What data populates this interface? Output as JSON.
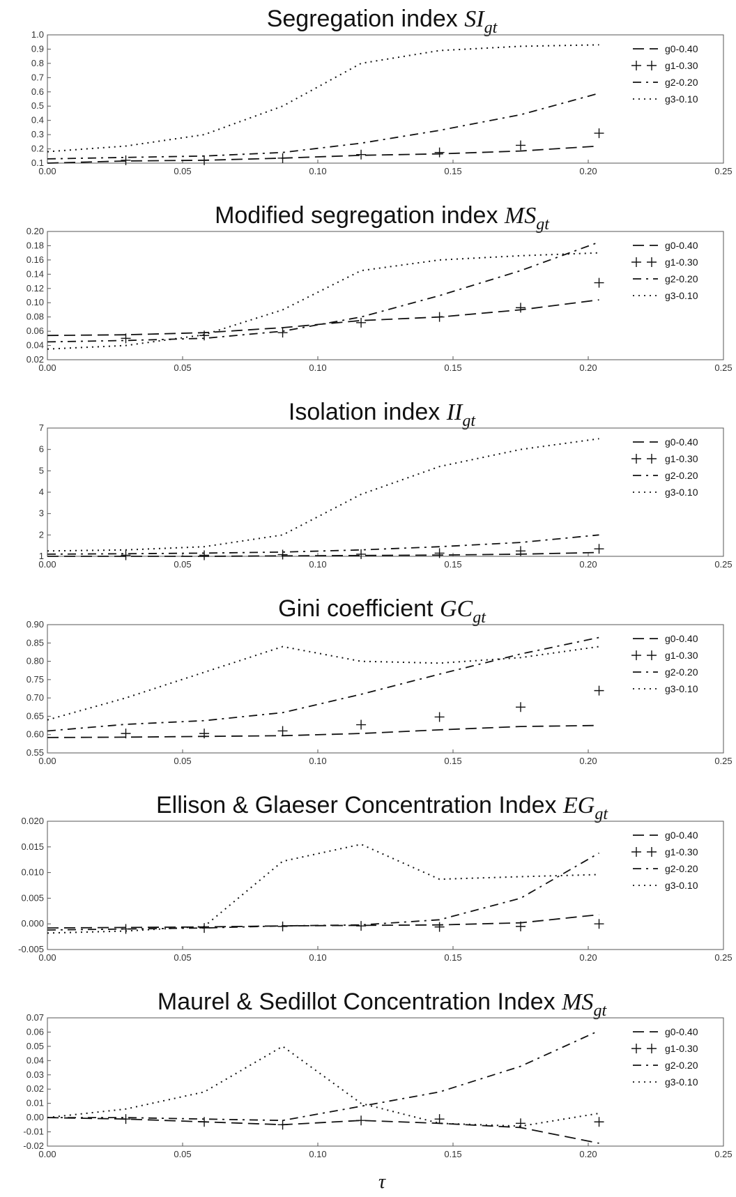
{
  "xlabel": "τ",
  "chart_data": [
    {
      "type": "line",
      "title": "Segregation index ",
      "title_math": "SI",
      "title_sub": "gt",
      "xlim": [
        0,
        0.25
      ],
      "ylim": [
        0.1,
        1.0
      ],
      "xticks": [
        "0.00",
        "0.05",
        "0.10",
        "0.15",
        "0.20",
        "0.25"
      ],
      "yticks": [
        "0.1",
        "0.2",
        "0.3",
        "0.4",
        "0.5",
        "0.6",
        "0.7",
        "0.8",
        "0.9",
        "1.0"
      ],
      "legend_position": "top-right",
      "series": [
        {
          "name": "g0-0.40",
          "style": "dashed",
          "x": [
            0,
            0.029,
            0.058,
            0.087,
            0.116,
            0.145,
            0.175,
            0.204
          ],
          "y": [
            0.1,
            0.115,
            0.12,
            0.135,
            0.155,
            0.165,
            0.185,
            0.22
          ]
        },
        {
          "name": "g1-0.30",
          "style": "markers",
          "x": [
            0.029,
            0.058,
            0.087,
            0.116,
            0.145,
            0.175,
            0.204
          ],
          "y": [
            0.12,
            0.12,
            0.135,
            0.16,
            0.175,
            0.225,
            0.31
          ]
        },
        {
          "name": "g2-0.20",
          "style": "dashdot",
          "x": [
            0,
            0.029,
            0.058,
            0.087,
            0.116,
            0.145,
            0.175,
            0.204
          ],
          "y": [
            0.13,
            0.14,
            0.15,
            0.175,
            0.24,
            0.33,
            0.44,
            0.59
          ]
        },
        {
          "name": "g3-0.10",
          "style": "dotted",
          "x": [
            0,
            0.029,
            0.058,
            0.087,
            0.116,
            0.145,
            0.175,
            0.204
          ],
          "y": [
            0.18,
            0.22,
            0.3,
            0.5,
            0.8,
            0.89,
            0.92,
            0.93
          ]
        }
      ]
    },
    {
      "type": "line",
      "title": "Modified segregation index ",
      "title_math": "MS",
      "title_sub": "gt",
      "xlim": [
        0,
        0.25
      ],
      "ylim": [
        0.02,
        0.2
      ],
      "xticks": [
        "0.00",
        "0.05",
        "0.10",
        "0.15",
        "0.20",
        "0.25"
      ],
      "yticks": [
        "0.02",
        "0.04",
        "0.06",
        "0.08",
        "0.10",
        "0.12",
        "0.14",
        "0.16",
        "0.18",
        "0.20"
      ],
      "legend_position": "top-right",
      "series": [
        {
          "name": "g0-0.40",
          "style": "dashed",
          "x": [
            0,
            0.029,
            0.058,
            0.087,
            0.116,
            0.145,
            0.175,
            0.204
          ],
          "y": [
            0.054,
            0.055,
            0.058,
            0.065,
            0.075,
            0.08,
            0.09,
            0.104
          ]
        },
        {
          "name": "g1-0.30",
          "style": "markers",
          "x": [
            0.029,
            0.058,
            0.087,
            0.116,
            0.145,
            0.175,
            0.204
          ],
          "y": [
            0.05,
            0.054,
            0.058,
            0.072,
            0.08,
            0.093,
            0.128
          ]
        },
        {
          "name": "g2-0.20",
          "style": "dashdot",
          "x": [
            0,
            0.029,
            0.058,
            0.087,
            0.116,
            0.145,
            0.175,
            0.204
          ],
          "y": [
            0.045,
            0.047,
            0.05,
            0.06,
            0.08,
            0.11,
            0.145,
            0.185
          ]
        },
        {
          "name": "g3-0.10",
          "style": "dotted",
          "x": [
            0,
            0.029,
            0.058,
            0.087,
            0.116,
            0.145,
            0.175,
            0.204
          ],
          "y": [
            0.035,
            0.04,
            0.055,
            0.09,
            0.145,
            0.16,
            0.166,
            0.17
          ]
        }
      ]
    },
    {
      "type": "line",
      "title": "Isolation index ",
      "title_math": "II",
      "title_sub": "gt",
      "xlim": [
        0,
        0.25
      ],
      "ylim": [
        1,
        7
      ],
      "xticks": [
        "0.00",
        "0.05",
        "0.10",
        "0.15",
        "0.20",
        "0.25"
      ],
      "yticks": [
        "1",
        "2",
        "3",
        "4",
        "5",
        "6",
        "7"
      ],
      "legend_position": "top-right",
      "series": [
        {
          "name": "g0-0.40",
          "style": "dashed",
          "x": [
            0,
            0.029,
            0.058,
            0.087,
            0.116,
            0.145,
            0.175,
            0.204
          ],
          "y": [
            1.0,
            1.0,
            1.0,
            1.02,
            1.04,
            1.06,
            1.1,
            1.18
          ]
        },
        {
          "name": "g1-0.30",
          "style": "markers",
          "x": [
            0.029,
            0.058,
            0.087,
            0.116,
            0.145,
            0.175,
            0.204
          ],
          "y": [
            1.05,
            1.05,
            1.08,
            1.1,
            1.15,
            1.25,
            1.35
          ]
        },
        {
          "name": "g2-0.20",
          "style": "dashdot",
          "x": [
            0,
            0.029,
            0.058,
            0.087,
            0.116,
            0.145,
            0.175,
            0.204
          ],
          "y": [
            1.1,
            1.12,
            1.15,
            1.2,
            1.3,
            1.45,
            1.65,
            2.0
          ]
        },
        {
          "name": "g3-0.10",
          "style": "dotted",
          "x": [
            0,
            0.029,
            0.058,
            0.087,
            0.116,
            0.145,
            0.175,
            0.204
          ],
          "y": [
            1.25,
            1.3,
            1.45,
            2.0,
            3.9,
            5.2,
            6.0,
            6.5
          ]
        }
      ]
    },
    {
      "type": "line",
      "title": "Gini coefficient ",
      "title_math": "GC",
      "title_sub": "gt",
      "xlim": [
        0,
        0.25
      ],
      "ylim": [
        0.55,
        0.9
      ],
      "xticks": [
        "0.00",
        "0.05",
        "0.10",
        "0.15",
        "0.20",
        "0.25"
      ],
      "yticks": [
        "0.55",
        "0.60",
        "0.65",
        "0.70",
        "0.75",
        "0.80",
        "0.85",
        "0.90"
      ],
      "legend_position": "top-right",
      "series": [
        {
          "name": "g0-0.40",
          "style": "dashed",
          "x": [
            0,
            0.029,
            0.058,
            0.087,
            0.116,
            0.145,
            0.175,
            0.204
          ],
          "y": [
            0.592,
            0.593,
            0.595,
            0.597,
            0.603,
            0.613,
            0.622,
            0.625
          ]
        },
        {
          "name": "g1-0.30",
          "style": "markers",
          "x": [
            0.029,
            0.058,
            0.087,
            0.116,
            0.145,
            0.175,
            0.204
          ],
          "y": [
            0.603,
            0.603,
            0.61,
            0.627,
            0.648,
            0.675,
            0.72
          ]
        },
        {
          "name": "g2-0.20",
          "style": "dashdot",
          "x": [
            0,
            0.029,
            0.058,
            0.087,
            0.116,
            0.145,
            0.175,
            0.204
          ],
          "y": [
            0.61,
            0.628,
            0.638,
            0.66,
            0.71,
            0.765,
            0.82,
            0.865
          ]
        },
        {
          "name": "g3-0.10",
          "style": "dotted",
          "x": [
            0,
            0.029,
            0.058,
            0.087,
            0.116,
            0.145,
            0.175,
            0.204
          ],
          "y": [
            0.64,
            0.7,
            0.77,
            0.84,
            0.8,
            0.795,
            0.81,
            0.84
          ]
        }
      ]
    },
    {
      "type": "line",
      "title": "Ellison & Glaeser Concentration Index ",
      "title_math": "EG",
      "title_sub": "gt",
      "xlim": [
        0,
        0.25
      ],
      "ylim": [
        -0.005,
        0.02
      ],
      "xticks": [
        "0.00",
        "0.05",
        "0.10",
        "0.15",
        "0.20",
        "0.25"
      ],
      "yticks": [
        "-0.005",
        "0.000",
        "0.005",
        "0.010",
        "0.015",
        "0.020"
      ],
      "legend_position": "top-right",
      "series": [
        {
          "name": "g0-0.40",
          "style": "dashed",
          "x": [
            0,
            0.029,
            0.058,
            0.087,
            0.116,
            0.145,
            0.175,
            0.204
          ],
          "y": [
            -0.0008,
            -0.0007,
            -0.0006,
            -0.0004,
            -0.0003,
            -0.0002,
            0.0002,
            0.0018
          ]
        },
        {
          "name": "g1-0.30",
          "style": "markers",
          "x": [
            0.029,
            0.058,
            0.087,
            0.116,
            0.145,
            0.175,
            0.204
          ],
          "y": [
            -0.001,
            -0.0008,
            -0.0005,
            -0.0004,
            -0.0006,
            -0.0005,
            0.0
          ]
        },
        {
          "name": "g2-0.20",
          "style": "dashdot",
          "x": [
            0,
            0.029,
            0.058,
            0.087,
            0.116,
            0.145,
            0.175,
            0.204
          ],
          "y": [
            -0.0012,
            -0.001,
            -0.0008,
            -0.0004,
            -0.0002,
            0.0008,
            0.005,
            0.0138
          ]
        },
        {
          "name": "g3-0.10",
          "style": "dotted",
          "x": [
            0,
            0.029,
            0.058,
            0.087,
            0.116,
            0.145,
            0.175,
            0.204
          ],
          "y": [
            -0.0018,
            -0.0014,
            -0.0005,
            0.0122,
            0.0155,
            0.0087,
            0.0092,
            0.0096
          ]
        }
      ]
    },
    {
      "type": "line",
      "title": "Maurel & Sedillot Concentration Index ",
      "title_math": "MS",
      "title_sub": "gt",
      "xlim": [
        0,
        0.25
      ],
      "ylim": [
        -0.02,
        0.07
      ],
      "xticks": [
        "0.00",
        "0.05",
        "0.10",
        "0.15",
        "0.20",
        "0.25"
      ],
      "yticks": [
        "-0.02",
        "-0.01",
        "0.00",
        "0.01",
        "0.02",
        "0.03",
        "0.04",
        "0.05",
        "0.06",
        "0.07"
      ],
      "legend_position": "top-right",
      "series": [
        {
          "name": "g0-0.40",
          "style": "dashed",
          "x": [
            0,
            0.029,
            0.058,
            0.087,
            0.116,
            0.145,
            0.175,
            0.204
          ],
          "y": [
            0.0,
            -0.001,
            -0.003,
            -0.005,
            -0.002,
            -0.004,
            -0.007,
            -0.018
          ]
        },
        {
          "name": "g1-0.30",
          "style": "markers",
          "x": [
            0.029,
            0.058,
            0.087,
            0.116,
            0.145,
            0.175,
            0.204
          ],
          "y": [
            -0.001,
            -0.003,
            -0.005,
            -0.002,
            -0.001,
            -0.004,
            -0.003
          ]
        },
        {
          "name": "g2-0.20",
          "style": "dashdot",
          "x": [
            0,
            0.029,
            0.058,
            0.087,
            0.116,
            0.145,
            0.175,
            0.204
          ],
          "y": [
            0.0,
            0.0,
            -0.001,
            -0.002,
            0.008,
            0.018,
            0.036,
            0.061
          ]
        },
        {
          "name": "g3-0.10",
          "style": "dotted",
          "x": [
            0,
            0.029,
            0.058,
            0.087,
            0.116,
            0.145,
            0.175,
            0.204
          ],
          "y": [
            0.0,
            0.006,
            0.018,
            0.05,
            0.01,
            -0.004,
            -0.006,
            0.003
          ]
        }
      ]
    }
  ]
}
